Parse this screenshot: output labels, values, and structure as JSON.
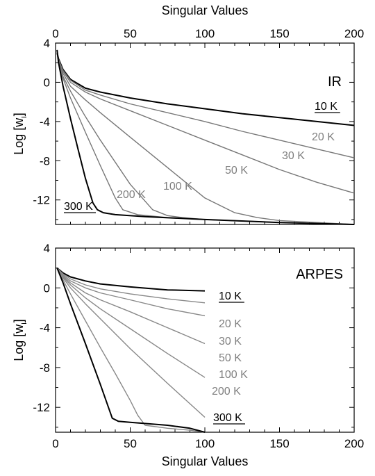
{
  "chart_data": [
    {
      "type": "line",
      "panel_label": "IR",
      "xlabel_top": "Singular Values",
      "ylabel": "Log [w_i]",
      "xlim": [
        0,
        200
      ],
      "ylim": [
        -14.5,
        4
      ],
      "xticks": [
        "0",
        "50",
        "100",
        "150",
        "200"
      ],
      "yticks": [
        "4",
        "0",
        "-4",
        "-8",
        "-12"
      ],
      "series": [
        {
          "name": "10 K",
          "color": "#000000",
          "x": [
            1,
            2,
            5,
            10,
            20,
            30,
            50,
            75,
            100,
            125,
            150,
            175,
            200
          ],
          "y": [
            3.0,
            2.4,
            1.3,
            0.3,
            -0.6,
            -1.0,
            -1.6,
            -2.2,
            -2.7,
            -3.2,
            -3.6,
            -4.0,
            -4.4
          ]
        },
        {
          "name": "20 K",
          "color": "#777777",
          "x": [
            1,
            2,
            5,
            10,
            20,
            30,
            50,
            75,
            100,
            125,
            150,
            175,
            200
          ],
          "y": [
            3.0,
            2.3,
            1.2,
            0.2,
            -0.8,
            -1.3,
            -2.2,
            -3.1,
            -4.0,
            -5.0,
            -5.9,
            -6.8,
            -7.7
          ]
        },
        {
          "name": "30 K",
          "color": "#777777",
          "x": [
            1,
            2,
            5,
            10,
            20,
            30,
            50,
            75,
            100,
            125,
            150,
            175,
            200
          ],
          "y": [
            3.0,
            2.3,
            1.1,
            0.0,
            -1.0,
            -1.7,
            -2.9,
            -4.4,
            -5.9,
            -7.4,
            -8.9,
            -10.2,
            -11.3
          ]
        },
        {
          "name": "50 K",
          "color": "#777777",
          "x": [
            1,
            2,
            5,
            10,
            20,
            30,
            50,
            75,
            100,
            120,
            135,
            150,
            175,
            200
          ],
          "y": [
            3.0,
            2.2,
            0.9,
            -0.4,
            -1.8,
            -3.1,
            -5.6,
            -8.7,
            -11.8,
            -13.3,
            -13.8,
            -14.1,
            -14.3,
            -14.5
          ]
        },
        {
          "name": "100 K",
          "color": "#777777",
          "x": [
            1,
            2,
            5,
            10,
            20,
            30,
            50,
            65,
            75,
            85,
            100,
            150,
            200
          ],
          "y": [
            3.0,
            2.1,
            0.6,
            -0.9,
            -3.5,
            -5.9,
            -10.4,
            -13.0,
            -13.6,
            -13.8,
            -14.0,
            -14.3,
            -14.5
          ]
        },
        {
          "name": "200 K",
          "color": "#777777",
          "x": [
            1,
            2,
            5,
            10,
            20,
            30,
            40,
            45,
            55,
            75,
            100,
            150,
            200
          ],
          "y": [
            3.0,
            2.0,
            0.4,
            -1.6,
            -5.1,
            -8.5,
            -11.8,
            -13.0,
            -13.5,
            -13.8,
            -14.0,
            -14.3,
            -14.5
          ]
        },
        {
          "name": "300 K",
          "color": "#000000",
          "x": [
            1,
            2,
            5,
            10,
            15,
            20,
            25,
            28,
            32,
            40,
            60,
            100,
            150,
            200
          ],
          "y": [
            3.3,
            2.0,
            -0.4,
            -3.7,
            -6.8,
            -9.8,
            -12.3,
            -13.0,
            -13.3,
            -13.5,
            -13.7,
            -14.0,
            -14.3,
            -14.5
          ]
        }
      ]
    },
    {
      "type": "line",
      "panel_label": "ARPES",
      "xlabel": "Singular Values",
      "ylabel": "Log [w_i]",
      "xlim": [
        0,
        200
      ],
      "ylim": [
        -14.5,
        4
      ],
      "xticks": [
        "0",
        "50",
        "100",
        "150",
        "200"
      ],
      "yticks": [
        "4",
        "0",
        "-4",
        "-8",
        "-12"
      ],
      "series": [
        {
          "name": "10 K",
          "color": "#000000",
          "x": [
            1,
            5,
            10,
            20,
            30,
            50,
            75,
            100
          ],
          "y": [
            2.0,
            1.5,
            1.1,
            0.7,
            0.4,
            0.1,
            -0.2,
            -0.3
          ]
        },
        {
          "name": "20 K",
          "color": "#888888",
          "x": [
            1,
            5,
            10,
            20,
            30,
            50,
            75,
            100
          ],
          "y": [
            2.0,
            1.4,
            0.9,
            0.3,
            -0.1,
            -0.6,
            -1.1,
            -1.5
          ]
        },
        {
          "name": "",
          "color": "#888888",
          "x": [
            1,
            5,
            10,
            20,
            30,
            50,
            75,
            100
          ],
          "y": [
            2.0,
            1.3,
            0.7,
            0.0,
            -0.5,
            -1.2,
            -2.1,
            -2.8
          ]
        },
        {
          "name": "30 K",
          "color": "#888888",
          "x": [
            1,
            5,
            10,
            20,
            30,
            50,
            75,
            100
          ],
          "y": [
            2.0,
            1.2,
            0.5,
            -0.5,
            -1.2,
            -2.4,
            -4.0,
            -5.6
          ]
        },
        {
          "name": "50 K",
          "color": "#888888",
          "x": [
            1,
            5,
            10,
            20,
            30,
            50,
            75,
            100
          ],
          "y": [
            2.0,
            1.1,
            0.3,
            -1.0,
            -2.1,
            -4.1,
            -6.6,
            -9.0
          ]
        },
        {
          "name": "100 K",
          "color": "#888888",
          "x": [
            1,
            5,
            10,
            20,
            30,
            50,
            75,
            100
          ],
          "y": [
            2.0,
            1.0,
            0.0,
            -1.6,
            -3.1,
            -6.1,
            -9.6,
            -13.0
          ]
        },
        {
          "name": "200 K",
          "color": "#888888",
          "x": [
            1,
            5,
            10,
            20,
            30,
            40,
            50,
            55,
            60,
            75,
            90,
            100
          ],
          "y": [
            2.0,
            0.8,
            -0.6,
            -3.3,
            -6.0,
            -8.6,
            -11.3,
            -12.8,
            -13.8,
            -14.1,
            -14.3,
            -14.5
          ]
        },
        {
          "name": "300 K",
          "color": "#000000",
          "x": [
            1,
            5,
            10,
            20,
            30,
            38,
            42,
            50,
            75,
            90,
            100
          ],
          "y": [
            2.0,
            0.5,
            -1.6,
            -5.6,
            -9.7,
            -13.1,
            -13.4,
            -13.5,
            -13.8,
            -14.1,
            -14.5
          ]
        }
      ]
    }
  ]
}
